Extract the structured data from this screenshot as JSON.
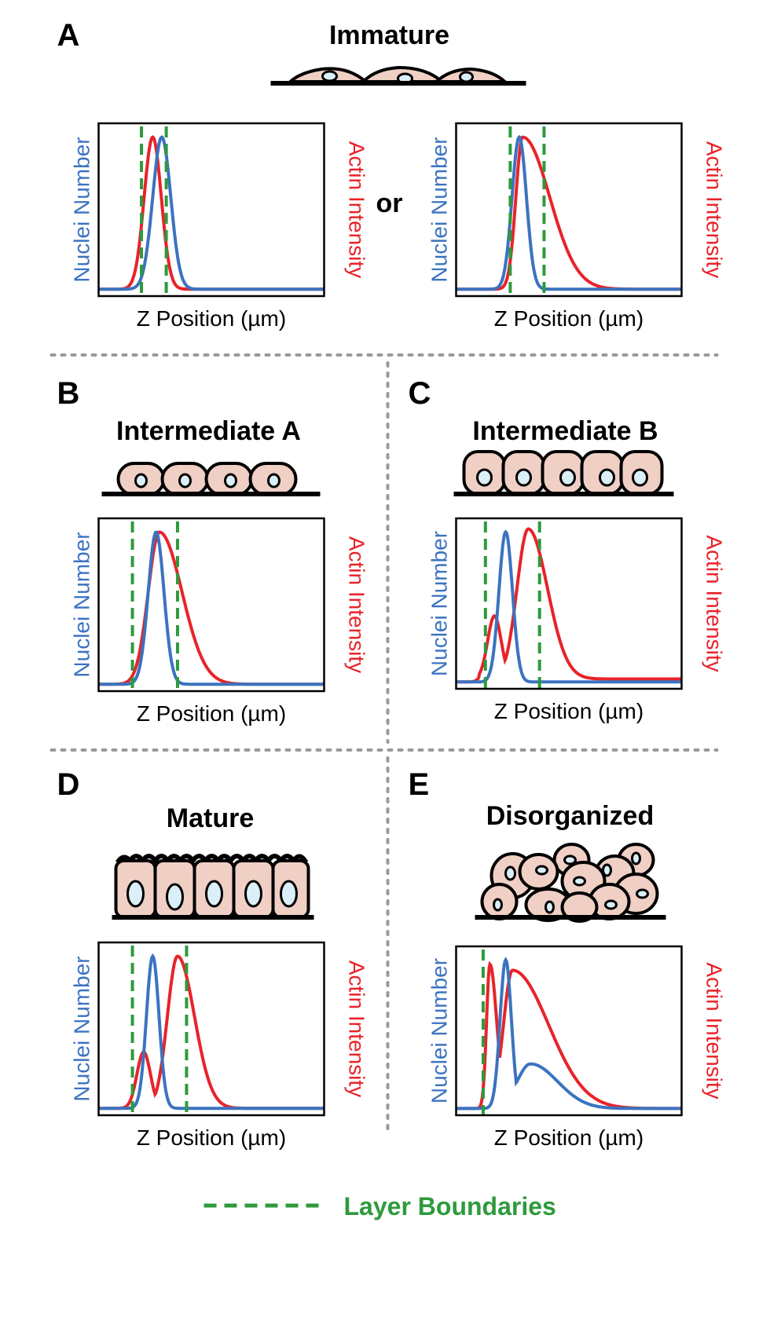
{
  "panels": [
    {
      "letter": "A",
      "title": "Immature",
      "conjunction": "or",
      "plots": [
        {
          "y_label": "Nuclei Number",
          "y2_label": "Actin Intensity",
          "x_label": "Z Position (µm)"
        },
        {
          "y_label": "Nuclei Number",
          "y2_label": "Actin Intensity",
          "x_label": "Z Position (µm)"
        }
      ]
    },
    {
      "letter": "B",
      "title": "Intermediate A",
      "plots": [
        {
          "y_label": "Nuclei Number",
          "y2_label": "Actin Intensity",
          "x_label": "Z Position (µm)"
        }
      ]
    },
    {
      "letter": "C",
      "title": "Intermediate B",
      "plots": [
        {
          "y_label": "Nuclei Number",
          "y2_label": "Actin Intensity",
          "x_label": "Z Position (µm)"
        }
      ]
    },
    {
      "letter": "D",
      "title": "Mature",
      "plots": [
        {
          "y_label": "Nuclei Number",
          "y2_label": "Actin Intensity",
          "x_label": "Z Position (µm)"
        }
      ]
    },
    {
      "letter": "E",
      "title": "Disorganized",
      "plots": [
        {
          "y_label": "Nuclei Number",
          "y2_label": "Actin Intensity",
          "x_label": "Z Position (µm)"
        }
      ]
    }
  ],
  "legend": "Layer Boundaries"
}
